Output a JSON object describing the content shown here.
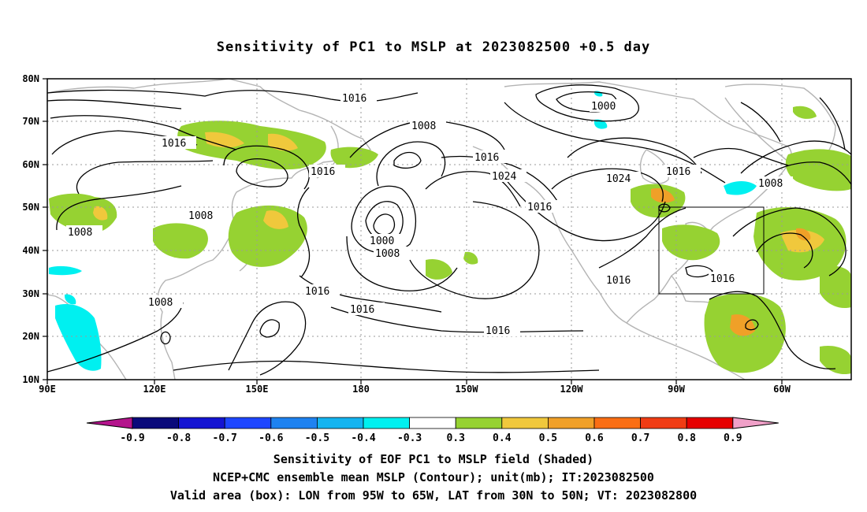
{
  "title": "Sensitivity of PC1 to MSLP at 2023082500 +0.5 day",
  "map": {
    "lat_labels": [
      "80N",
      "70N",
      "60N",
      "50N",
      "40N",
      "30N",
      "20N",
      "10N"
    ],
    "lon_labels": [
      "90E",
      "120E",
      "150E",
      "180",
      "150W",
      "120W",
      "90W",
      "60W"
    ],
    "contour_labels": [
      {
        "text": "1016"
      },
      {
        "text": "1016"
      },
      {
        "text": "1008"
      },
      {
        "text": "1000"
      },
      {
        "text": "1016"
      },
      {
        "text": "1016"
      },
      {
        "text": "1024"
      },
      {
        "text": "1024"
      },
      {
        "text": "1016"
      },
      {
        "text": "1008"
      },
      {
        "text": "1008"
      },
      {
        "text": "1008"
      },
      {
        "text": "1016"
      },
      {
        "text": "1000"
      },
      {
        "text": "1008"
      },
      {
        "text": "1016"
      },
      {
        "text": "1016"
      },
      {
        "text": "1016"
      },
      {
        "text": "1008"
      },
      {
        "text": "1016"
      },
      {
        "text": "1016"
      }
    ],
    "valid_box": {
      "lon_west": "95W",
      "lon_east": "65W",
      "lat_south": "30N",
      "lat_north": "50N"
    }
  },
  "colorbar": {
    "labels": [
      "-0.9",
      "-0.8",
      "-0.7",
      "-0.6",
      "-0.5",
      "-0.4",
      "-0.3",
      "0.3",
      "0.4",
      "0.5",
      "0.6",
      "0.7",
      "0.8",
      "0.9"
    ],
    "colors": [
      "#0a0a7a",
      "#1414d2",
      "#1e46ff",
      "#1e82f0",
      "#14b4f0",
      "#00f0f0",
      "#ffffff",
      "#96d232",
      "#f0c83c",
      "#f0a028",
      "#fa6e14",
      "#f03c14",
      "#e60000"
    ],
    "low_arrow_color": "#b4148c",
    "high_arrow_color": "#f0a0c8"
  },
  "footer": {
    "line1": "Sensitivity of EOF PC1 to MSLP field (Shaded)",
    "line2": "NCEP+CMC ensemble mean MSLP (Contour); unit(mb); IT:2023082500",
    "line3": "Valid area (box): LON from 95W to 65W, LAT from 30N to 50N; VT: 2023082800"
  }
}
